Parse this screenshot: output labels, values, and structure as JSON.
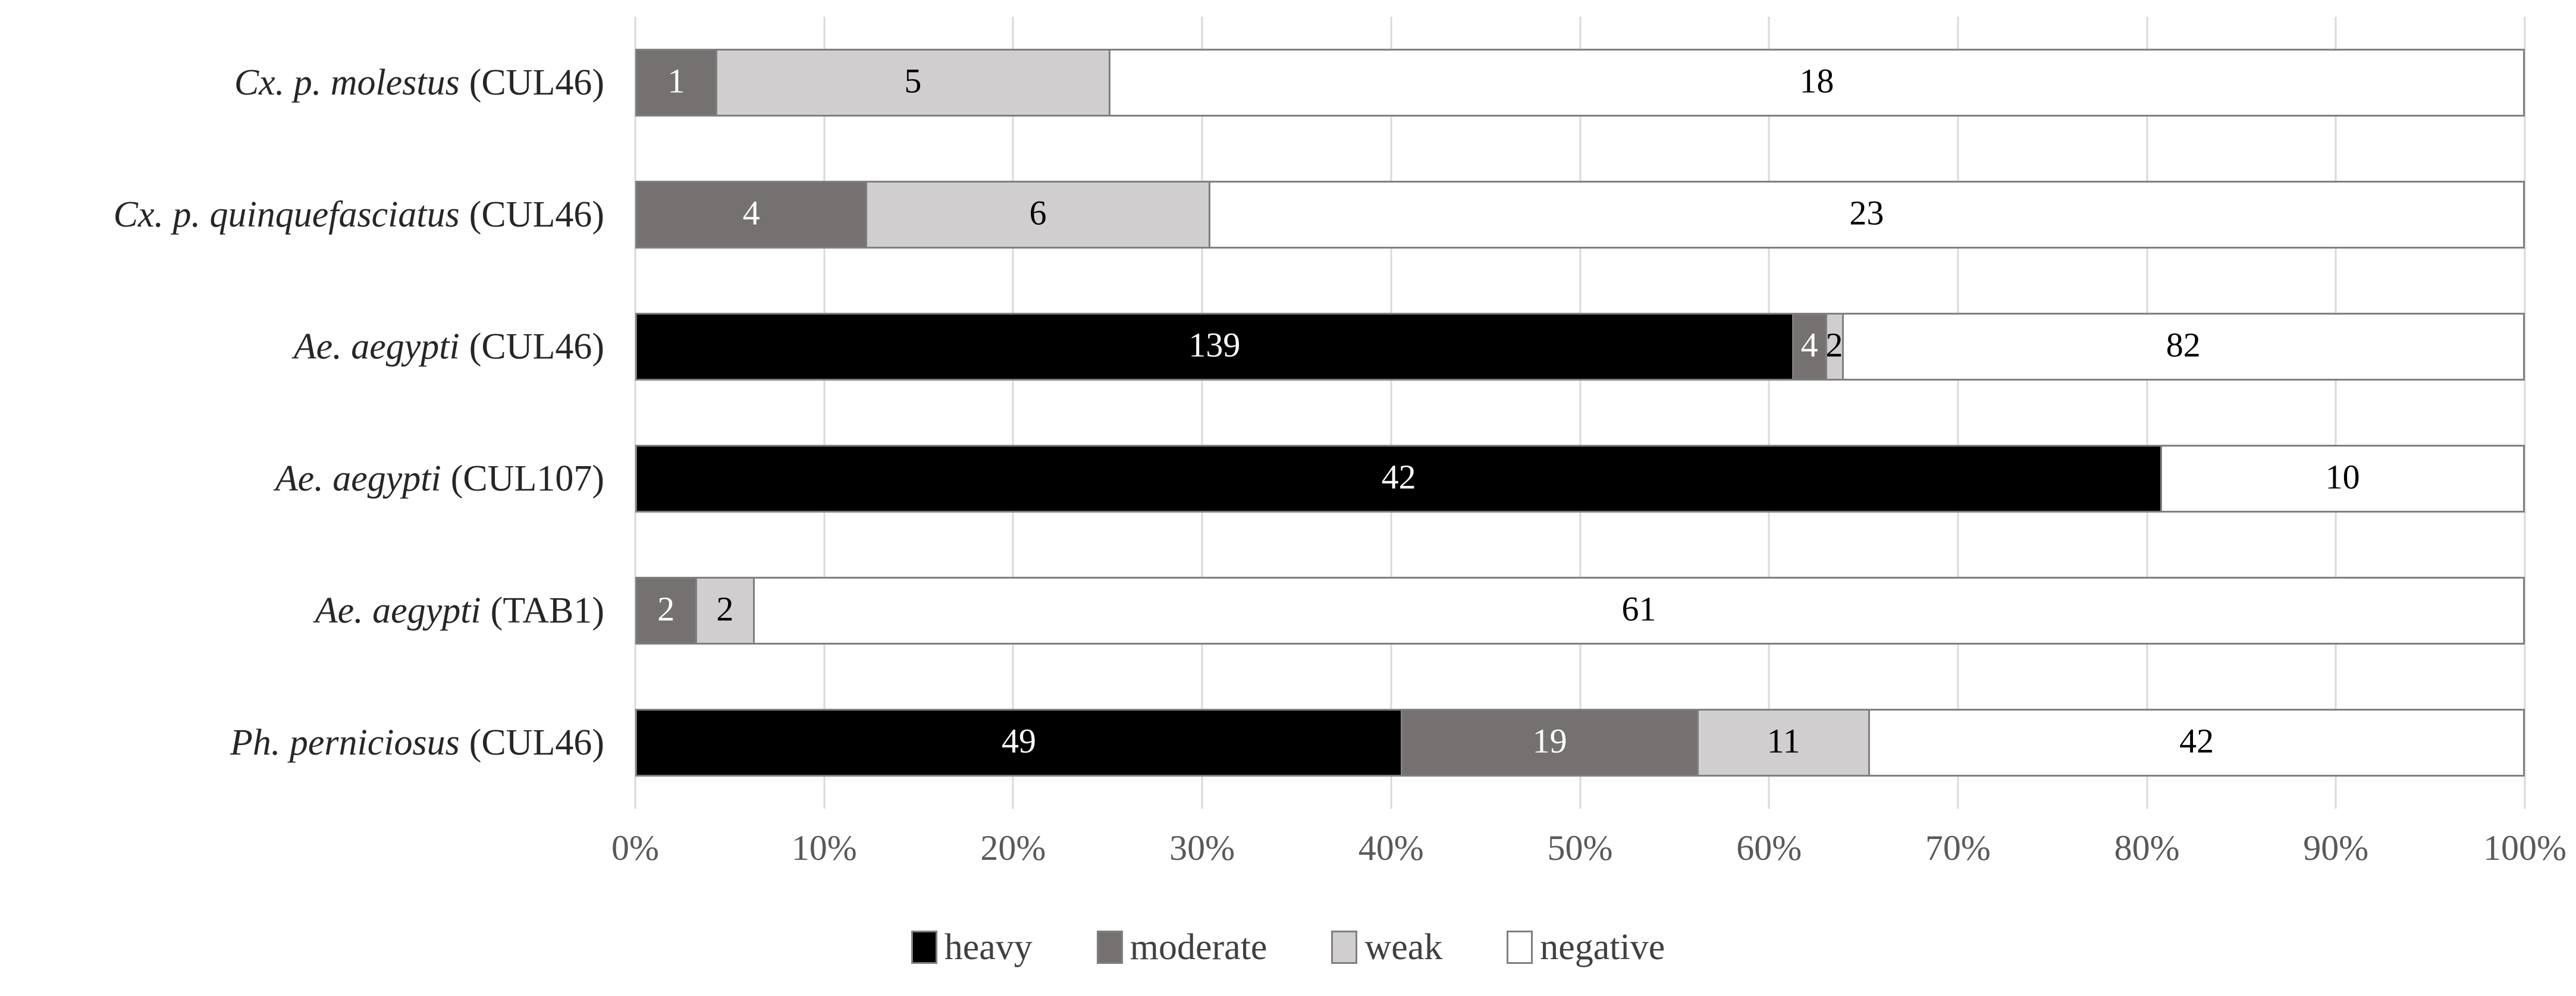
{
  "chart_data": {
    "type": "bar",
    "orientation": "horizontal",
    "stacked": true,
    "title": "",
    "xlabel": "",
    "ylabel": "",
    "categories": [
      {
        "species": "Cx. p. molestus",
        "strain": "(CUL46)"
      },
      {
        "species": "Cx. p. quinquefasciatus",
        "strain": "(CUL46)"
      },
      {
        "species": "Ae. aegypti",
        "strain": "(CUL46)"
      },
      {
        "species": "Ae. aegypti",
        "strain": "(CUL107)"
      },
      {
        "species": "Ae. aegypti",
        "strain": "(TAB1)"
      },
      {
        "species": "Ph. perniciosus",
        "strain": "(CUL46)"
      }
    ],
    "series": [
      {
        "name": "heavy",
        "color": "#000000",
        "label_color": "#ffffff",
        "values": [
          0,
          0,
          139,
          42,
          0,
          49
        ]
      },
      {
        "name": "moderate",
        "color": "#767171",
        "label_color": "#ffffff",
        "values": [
          1,
          4,
          4,
          0,
          2,
          19
        ]
      },
      {
        "name": "weak",
        "color": "#d0cece",
        "label_color": "#000000",
        "values": [
          5,
          6,
          2,
          0,
          2,
          11
        ]
      },
      {
        "name": "negative",
        "color": "#ffffff",
        "label_color": "#000000",
        "values": [
          18,
          23,
          82,
          10,
          61,
          42
        ]
      }
    ],
    "x_axis": {
      "min": 0,
      "max": 100,
      "tick_step": 10,
      "ticks": [
        "0%",
        "10%",
        "20%",
        "30%",
        "40%",
        "50%",
        "60%",
        "70%",
        "80%",
        "90%",
        "100%"
      ],
      "gridlines": "vertical"
    },
    "legend": {
      "position": "bottom",
      "entries": [
        "heavy",
        "moderate",
        "weak",
        "negative"
      ]
    },
    "colors": {
      "gridline": "#d9d9d9",
      "bar_border": "#7f7f7f",
      "tick_text": "#595959",
      "category_text": "#262626",
      "legend_text": "#404040",
      "background": "#ffffff"
    }
  }
}
